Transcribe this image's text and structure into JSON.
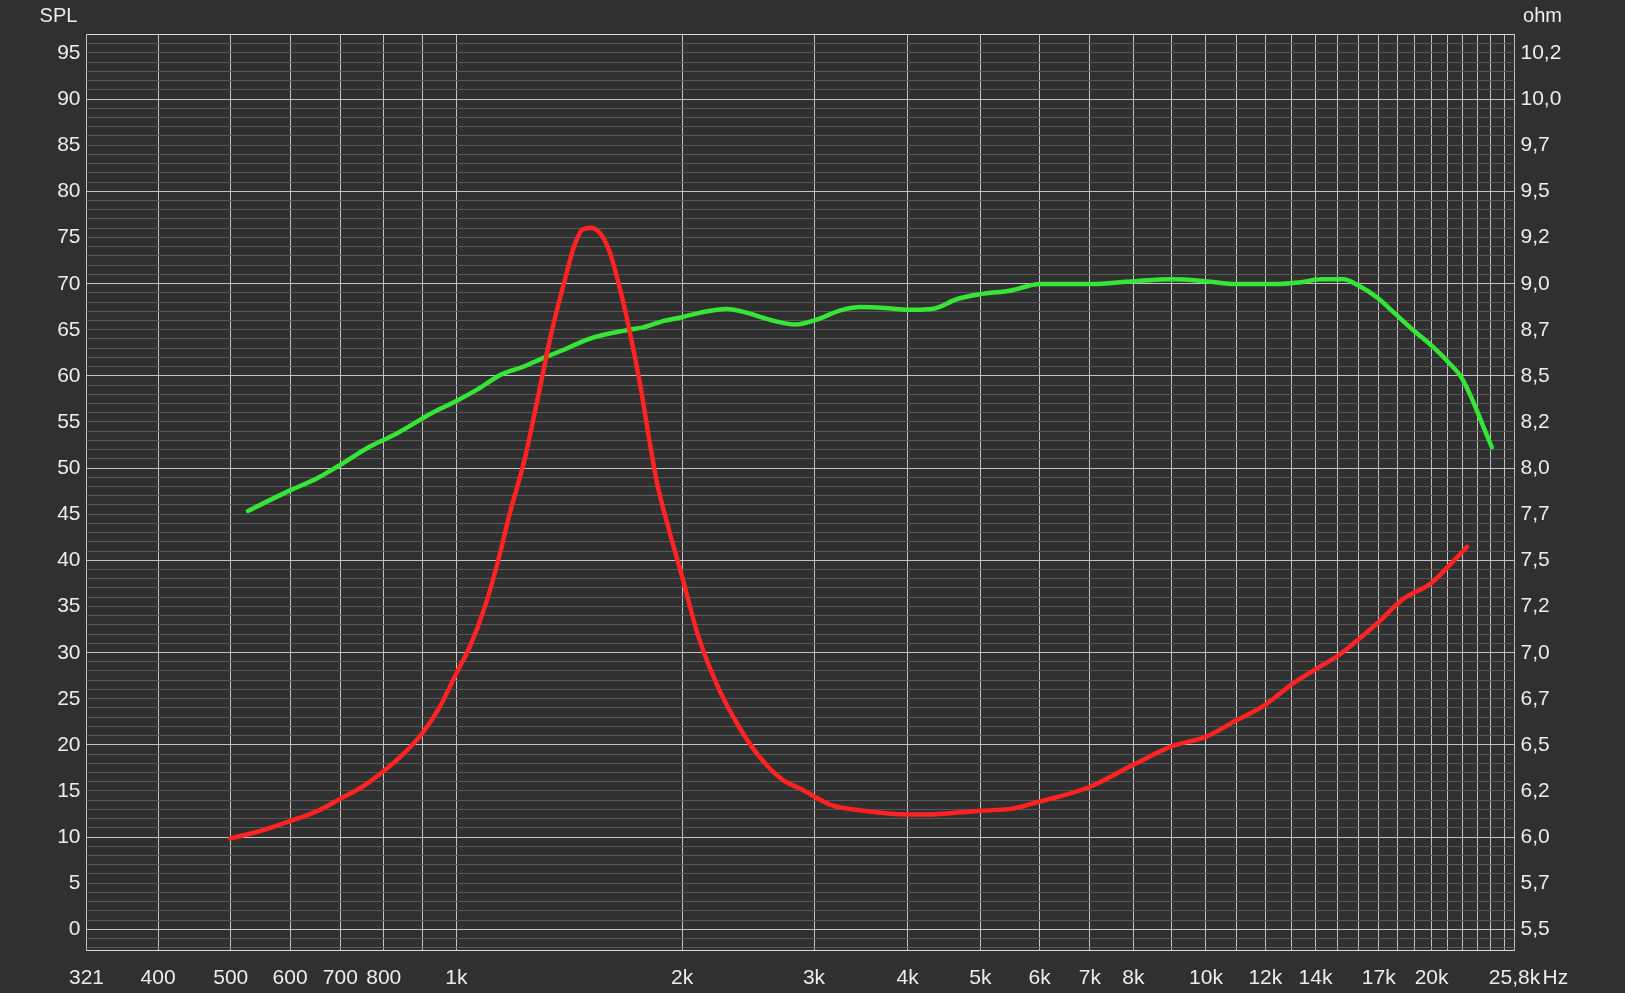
{
  "chart_data": {
    "type": "line",
    "ylabel": "SPL",
    "y2label": "ohm",
    "xlabel": "Hz",
    "log": "x",
    "grid": true,
    "line_style": "solid",
    "xlim": [
      321,
      25800
    ],
    "xticks": [
      321,
      400,
      500,
      600,
      700,
      800,
      {
        "value": 900,
        "label": null
      },
      {
        "value": 1000,
        "label": "1k"
      },
      {
        "value": 2000,
        "label": "2k"
      },
      {
        "value": 3000,
        "label": "3k"
      },
      {
        "value": 4000,
        "label": "4k"
      },
      {
        "value": 5000,
        "label": "5k"
      },
      {
        "value": 6000,
        "label": "6k"
      },
      {
        "value": 7000,
        "label": "7k"
      },
      {
        "value": 8000,
        "label": "8k"
      },
      {
        "value": 9000,
        "label": null
      },
      {
        "value": 10000,
        "label": "10k"
      },
      {
        "value": 11000,
        "label": null
      },
      {
        "value": 12000,
        "label": "12k"
      },
      {
        "value": 13000,
        "label": null
      },
      {
        "value": 14000,
        "label": "14k"
      },
      {
        "value": 15000,
        "label": null
      },
      {
        "value": 16000,
        "label": null
      },
      {
        "value": 17000,
        "label": "17k"
      },
      {
        "value": 18000,
        "label": null
      },
      {
        "value": 19000,
        "label": null
      },
      {
        "value": 20000,
        "label": "20k"
      },
      {
        "value": 21000,
        "label": null
      },
      {
        "value": 22000,
        "label": null
      },
      {
        "value": 23000,
        "label": null
      },
      {
        "value": 24000,
        "label": null
      },
      {
        "value": 25000,
        "label": null
      },
      {
        "value": 25800,
        "label": "25,8k"
      }
    ],
    "ylim": [
      -2.3,
      97
    ],
    "yticks": [
      {
        "value": -2,
        "label": null
      },
      {
        "value": -1,
        "label": null
      },
      0,
      {
        "value": 1,
        "label": null
      },
      {
        "value": 2,
        "label": null
      },
      {
        "value": 3,
        "label": null
      },
      {
        "value": 4,
        "label": null
      },
      5,
      {
        "value": 6,
        "label": null
      },
      {
        "value": 7,
        "label": null
      },
      {
        "value": 8,
        "label": null
      },
      {
        "value": 9,
        "label": null
      },
      10,
      {
        "value": 11,
        "label": null
      },
      {
        "value": 12,
        "label": null
      },
      {
        "value": 13,
        "label": null
      },
      {
        "value": 14,
        "label": null
      },
      15,
      {
        "value": 16,
        "label": null
      },
      {
        "value": 17,
        "label": null
      },
      {
        "value": 18,
        "label": null
      },
      {
        "value": 19,
        "label": null
      },
      20,
      {
        "value": 21,
        "label": null
      },
      {
        "value": 22,
        "label": null
      },
      {
        "value": 23,
        "label": null
      },
      {
        "value": 24,
        "label": null
      },
      25,
      {
        "value": 26,
        "label": null
      },
      {
        "value": 27,
        "label": null
      },
      {
        "value": 28,
        "label": null
      },
      {
        "value": 29,
        "label": null
      },
      30,
      {
        "value": 31,
        "label": null
      },
      {
        "value": 32,
        "label": null
      },
      {
        "value": 33,
        "label": null
      },
      {
        "value": 34,
        "label": null
      },
      35,
      {
        "value": 36,
        "label": null
      },
      {
        "value": 37,
        "label": null
      },
      {
        "value": 38,
        "label": null
      },
      {
        "value": 39,
        "label": null
      },
      40,
      {
        "value": 41,
        "label": null
      },
      {
        "value": 42,
        "label": null
      },
      {
        "value": 43,
        "label": null
      },
      {
        "value": 44,
        "label": null
      },
      45,
      {
        "value": 46,
        "label": null
      },
      {
        "value": 47,
        "label": null
      },
      {
        "value": 48,
        "label": null
      },
      {
        "value": 49,
        "label": null
      },
      50,
      {
        "value": 51,
        "label": null
      },
      {
        "value": 52,
        "label": null
      },
      {
        "value": 53,
        "label": null
      },
      {
        "value": 54,
        "label": null
      },
      55,
      {
        "value": 56,
        "label": null
      },
      {
        "value": 57,
        "label": null
      },
      {
        "value": 58,
        "label": null
      },
      {
        "value": 59,
        "label": null
      },
      60,
      {
        "value": 61,
        "label": null
      },
      {
        "value": 62,
        "label": null
      },
      {
        "value": 63,
        "label": null
      },
      {
        "value": 64,
        "label": null
      },
      65,
      {
        "value": 66,
        "label": null
      },
      {
        "value": 67,
        "label": null
      },
      {
        "value": 68,
        "label": null
      },
      {
        "value": 69,
        "label": null
      },
      70,
      {
        "value": 71,
        "label": null
      },
      {
        "value": 72,
        "label": null
      },
      {
        "value": 73,
        "label": null
      },
      {
        "value": 74,
        "label": null
      },
      75,
      {
        "value": 76,
        "label": null
      },
      {
        "value": 77,
        "label": null
      },
      {
        "value": 78,
        "label": null
      },
      {
        "value": 79,
        "label": null
      },
      80,
      {
        "value": 81,
        "label": null
      },
      {
        "value": 82,
        "label": null
      },
      {
        "value": 83,
        "label": null
      },
      {
        "value": 84,
        "label": null
      },
      85,
      {
        "value": 86,
        "label": null
      },
      {
        "value": 87,
        "label": null
      },
      {
        "value": 88,
        "label": null
      },
      {
        "value": 89,
        "label": null
      },
      90,
      {
        "value": 91,
        "label": null
      },
      {
        "value": 92,
        "label": null
      },
      {
        "value": 93,
        "label": null
      },
      {
        "value": 94,
        "label": null
      },
      95,
      {
        "value": 96,
        "label": null
      }
    ],
    "y2lim": [
      5.385,
      10.35
    ],
    "y2ticks": [
      {
        "value": 5.5,
        "label": "5,5"
      },
      {
        "value": 5.75,
        "label": "5,7"
      },
      {
        "value": 6.0,
        "label": "6,0"
      },
      {
        "value": 6.25,
        "label": "6,2"
      },
      {
        "value": 6.5,
        "label": "6,5"
      },
      {
        "value": 6.75,
        "label": "6,7"
      },
      {
        "value": 7.0,
        "label": "7,0"
      },
      {
        "value": 7.25,
        "label": "7,2"
      },
      {
        "value": 7.5,
        "label": "7,5"
      },
      {
        "value": 7.75,
        "label": "7,7"
      },
      {
        "value": 8.0,
        "label": "8,0"
      },
      {
        "value": 8.25,
        "label": "8,2"
      },
      {
        "value": 8.5,
        "label": "8,5"
      },
      {
        "value": 8.75,
        "label": "8,7"
      },
      {
        "value": 9.0,
        "label": "9,0"
      },
      {
        "value": 9.25,
        "label": "9,2"
      },
      {
        "value": 9.5,
        "label": "9,5"
      },
      {
        "value": 9.75,
        "label": "9,7"
      },
      {
        "value": 10.0,
        "label": "10,0"
      },
      {
        "value": 10.25,
        "label": "10,2"
      }
    ],
    "series": [
      {
        "color": "#36e636",
        "x": [
          528,
          600,
          655,
          698,
          769,
          834,
          933,
          1000,
          1070,
          1150,
          1227,
          1319,
          1396,
          1500,
          1693,
          1777,
          1895,
          2000,
          2121,
          2299,
          2412,
          2657,
          2835,
          3020,
          3277,
          3467,
          3730,
          4010,
          4314,
          4677,
          5016,
          5503,
          6013,
          7015,
          8020,
          9030,
          10000,
          11000,
          12360,
          13410,
          14300,
          15260,
          16020,
          16960,
          17950,
          18990,
          20100,
          21100,
          21980,
          22690,
          23440,
          24100
        ],
        "values": [
          45.3,
          47.5,
          48.9,
          50.2,
          52.3,
          53.7,
          56.0,
          57.2,
          58.5,
          60.1,
          60.9,
          62.0,
          62.8,
          63.9,
          64.9,
          65.2,
          65.9,
          66.3,
          66.8,
          67.2,
          66.9,
          65.9,
          65.5,
          66.0,
          67.1,
          67.4,
          67.3,
          67.1,
          67.2,
          68.3,
          68.8,
          69.2,
          69.9,
          69.9,
          70.2,
          70.4,
          70.2,
          69.9,
          69.9,
          70.1,
          70.4,
          70.4,
          69.7,
          68.4,
          66.6,
          64.8,
          63.1,
          61.4,
          59.7,
          57.4,
          54.6,
          52.2
        ]
      },
      {
        "color": "#ff2222",
        "axis": "y2",
        "x": [
          500,
          548,
          597,
          655,
          698,
          757,
          798,
          847,
          898,
          948,
          1000,
          1044,
          1096,
          1141,
          1178,
          1236,
          1288,
          1341,
          1396,
          1441,
          1476,
          1512,
          1549,
          1600,
          1653,
          1707,
          1763,
          1820,
          1850,
          1925,
          2000,
          2104,
          2226,
          2374,
          2532,
          2744,
          2878,
          3060,
          3172,
          3496,
          4000,
          4314,
          4680,
          5020,
          5500,
          6010,
          7020,
          8020,
          9030,
          10000,
          11000,
          11970,
          13090,
          14070,
          15020,
          16020,
          17100,
          18240,
          20100,
          21270,
          22330
        ],
        "values": [
          5.99,
          6.03,
          6.08,
          6.14,
          6.2,
          6.28,
          6.35,
          6.44,
          6.55,
          6.69,
          6.88,
          7.03,
          7.26,
          7.51,
          7.74,
          8.05,
          8.39,
          8.73,
          9.01,
          9.21,
          9.29,
          9.3,
          9.28,
          9.18,
          8.98,
          8.73,
          8.44,
          8.1,
          7.94,
          7.66,
          7.42,
          7.09,
          6.83,
          6.61,
          6.44,
          6.3,
          6.26,
          6.2,
          6.17,
          6.14,
          6.12,
          6.12,
          6.13,
          6.14,
          6.15,
          6.19,
          6.27,
          6.39,
          6.49,
          6.54,
          6.63,
          6.71,
          6.83,
          6.91,
          6.98,
          7.07,
          7.17,
          7.28,
          7.38,
          7.48,
          7.57
        ]
      }
    ]
  }
}
